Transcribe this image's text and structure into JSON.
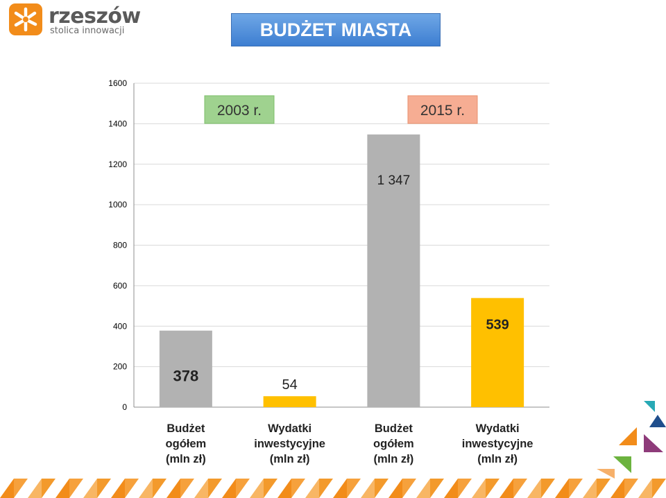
{
  "logo": {
    "name": "rzeszów",
    "tagline": "stolica innowacji",
    "icon": "sun-logo-icon"
  },
  "title": "BUDŻET MIASTA",
  "colors": {
    "gray_bar": "#b2b2b2",
    "yellow_bar": "#ffc000",
    "title_bg": "#4f8ad8",
    "year1_bg": "#9fd28f",
    "year2_bg": "#f6ad93",
    "accent_orange": "#f28c1a"
  },
  "year_labels": [
    "2003 r.",
    "2015 r."
  ],
  "chart_data": {
    "type": "bar",
    "categories": [
      "Budżet ogółem (mln zł)",
      "Wydatki inwestycyjne (mln zł)",
      "Budżet ogółem (mln zł)",
      "Wydatki inwestycyjne (mln zł)"
    ],
    "category_lines": [
      [
        "Budżet",
        "ogółem",
        "(mln zł)"
      ],
      [
        "Wydatki",
        "inwestycyjne",
        "(mln zł)"
      ],
      [
        "Budżet",
        "ogółem",
        "(mln zł)"
      ],
      [
        "Wydatki",
        "inwestycyjne",
        "(mln zł)"
      ]
    ],
    "values": [
      378,
      54,
      1347,
      539
    ],
    "value_labels": [
      "378",
      "54",
      "1 347",
      "539"
    ],
    "bar_colors": [
      "#b2b2b2",
      "#ffc000",
      "#b2b2b2",
      "#ffc000"
    ],
    "ylim": [
      0,
      1600
    ],
    "yticks": [
      "0",
      "200",
      "400",
      "600",
      "800",
      "1000",
      "1200",
      "1400",
      "1600"
    ],
    "grid": true,
    "title": "",
    "xlabel": "",
    "ylabel": ""
  }
}
